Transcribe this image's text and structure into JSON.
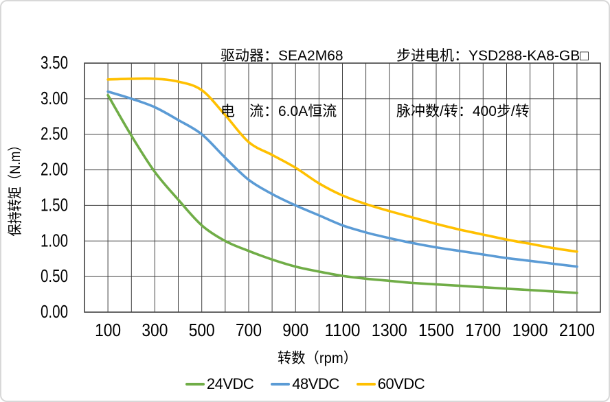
{
  "header": {
    "driver": "驱动器：SEA2M68",
    "current": "电　流：6.0A恒流",
    "motor": "步进电机：YSD288-KA8-GB□",
    "pulses": "脉冲数/转：400步/转"
  },
  "chart_data": {
    "type": "line",
    "x": [
      100,
      200,
      300,
      400,
      500,
      600,
      700,
      800,
      900,
      1000,
      1100,
      1200,
      1300,
      1400,
      1500,
      1600,
      1700,
      1800,
      1900,
      2000,
      2100
    ],
    "series": [
      {
        "name": "24VDC",
        "color": "#70AD47",
        "values": [
          3.05,
          2.48,
          1.97,
          1.58,
          1.22,
          1.0,
          0.86,
          0.74,
          0.64,
          0.57,
          0.51,
          0.47,
          0.44,
          0.41,
          0.39,
          0.37,
          0.35,
          0.33,
          0.31,
          0.29,
          0.27
        ]
      },
      {
        "name": "48VDC",
        "color": "#5B9BD5",
        "values": [
          3.1,
          3.0,
          2.88,
          2.7,
          2.5,
          2.17,
          1.86,
          1.66,
          1.5,
          1.36,
          1.22,
          1.12,
          1.04,
          0.97,
          0.91,
          0.86,
          0.81,
          0.76,
          0.72,
          0.68,
          0.64
        ]
      },
      {
        "name": "60VDC",
        "color": "#FFC000",
        "values": [
          3.27,
          3.28,
          3.28,
          3.24,
          3.12,
          2.77,
          2.39,
          2.21,
          2.03,
          1.81,
          1.64,
          1.52,
          1.42,
          1.33,
          1.24,
          1.16,
          1.09,
          1.02,
          0.96,
          0.9,
          0.85
        ]
      }
    ],
    "title": "",
    "xlabel": "转数（rpm）",
    "ylabel": "保持转矩（N.m）",
    "xlim": [
      0,
      2200
    ],
    "ylim": [
      0,
      3.5
    ],
    "x_ticks": [
      100,
      300,
      500,
      700,
      900,
      1100,
      1300,
      1500,
      1700,
      1900,
      2100
    ],
    "y_ticks": [
      "3.50",
      "3.00",
      "2.50",
      "2.00",
      "1.50",
      "1.00",
      "0.50",
      "0.00"
    ],
    "grid": {
      "on": true,
      "step_x": 100,
      "step_y": 0.5,
      "color": "#404040"
    },
    "legend_position": "bottom"
  }
}
